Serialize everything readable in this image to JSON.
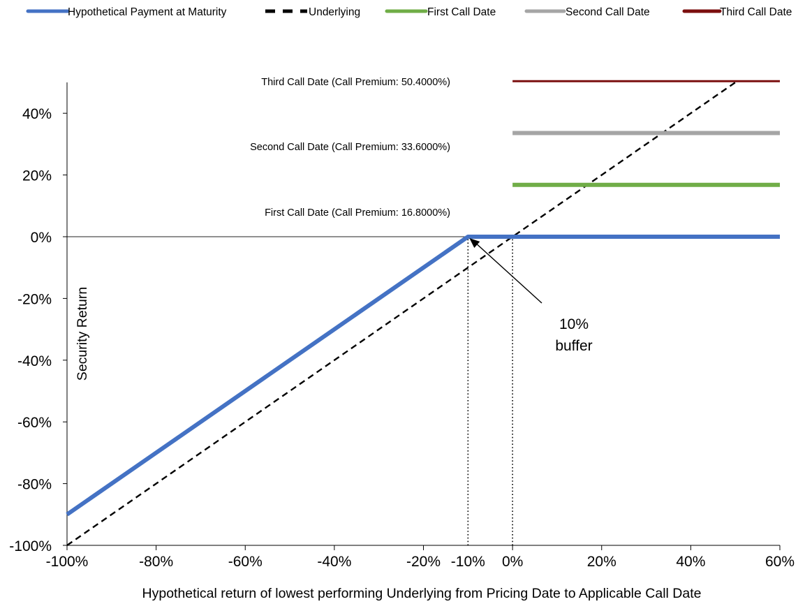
{
  "chart_data": {
    "type": "line",
    "title": "",
    "xlabel": "Hypothetical return of lowest performing Underlying from Pricing Date to Applicable Call Date",
    "ylabel": "Security Return",
    "xlim": [
      -100,
      60
    ],
    "ylim": [
      -100,
      50
    ],
    "x_ticks": [
      -100,
      -80,
      -60,
      -40,
      -20,
      0,
      20,
      40,
      60
    ],
    "x_tick_labels": [
      "-100%",
      "-80%",
      "-60%",
      "-40%",
      "-20%",
      "0%",
      "20%",
      "40%",
      "60%"
    ],
    "y_ticks": [
      -100,
      -80,
      -60,
      -40,
      -20,
      0,
      20,
      40
    ],
    "y_tick_labels": [
      "-100%",
      "-80%",
      "-60%",
      "-40%",
      "-20%",
      "0%",
      "20%",
      "40%"
    ],
    "extra_x_label": {
      "x": -10,
      "text": "-10%"
    },
    "grid": false,
    "legend_position": "top",
    "series": [
      {
        "name": "Hypothetical Payment at Maturity",
        "color": "#4472c4",
        "style": "solid",
        "x": [
          -100,
          -10,
          60
        ],
        "y": [
          -90,
          0,
          0
        ]
      },
      {
        "name": "Underlying",
        "color": "#000000",
        "style": "dashed",
        "x": [
          -100,
          50
        ],
        "y": [
          -100,
          50
        ]
      },
      {
        "name": "First Call Date",
        "color": "#70ad47",
        "style": "solid",
        "x": [
          0,
          60
        ],
        "y": [
          16.8,
          16.8
        ]
      },
      {
        "name": "Second Call Date",
        "color": "#a5a5a5",
        "style": "solid",
        "x": [
          0,
          60
        ],
        "y": [
          33.6,
          33.6
        ]
      },
      {
        "name": "Third Call Date",
        "color": "#7b0f0f",
        "style": "solid",
        "x": [
          0,
          60
        ],
        "y": [
          50.4,
          50.4
        ]
      }
    ],
    "annotations": [
      {
        "id": "third",
        "text": "Third Call Date (Call Premium: 50.4000%)"
      },
      {
        "id": "second",
        "text": "Second Call Date (Call Premium: 33.6000%)"
      },
      {
        "id": "first",
        "text": "First Call Date (Call Premium: 16.8000%)"
      },
      {
        "id": "buffer_line1",
        "text": "10%"
      },
      {
        "id": "buffer_line2",
        "text": "buffer"
      }
    ],
    "reference_lines": [
      {
        "type": "vertical",
        "style": "dotted",
        "x": -10,
        "y_from": -100,
        "y_to": 0
      },
      {
        "type": "vertical",
        "style": "dotted",
        "x": 0,
        "y_from": -100,
        "y_to": 0
      },
      {
        "type": "horizontal",
        "style": "solid",
        "y": 0,
        "x_from": -100,
        "x_to": 60
      }
    ]
  }
}
